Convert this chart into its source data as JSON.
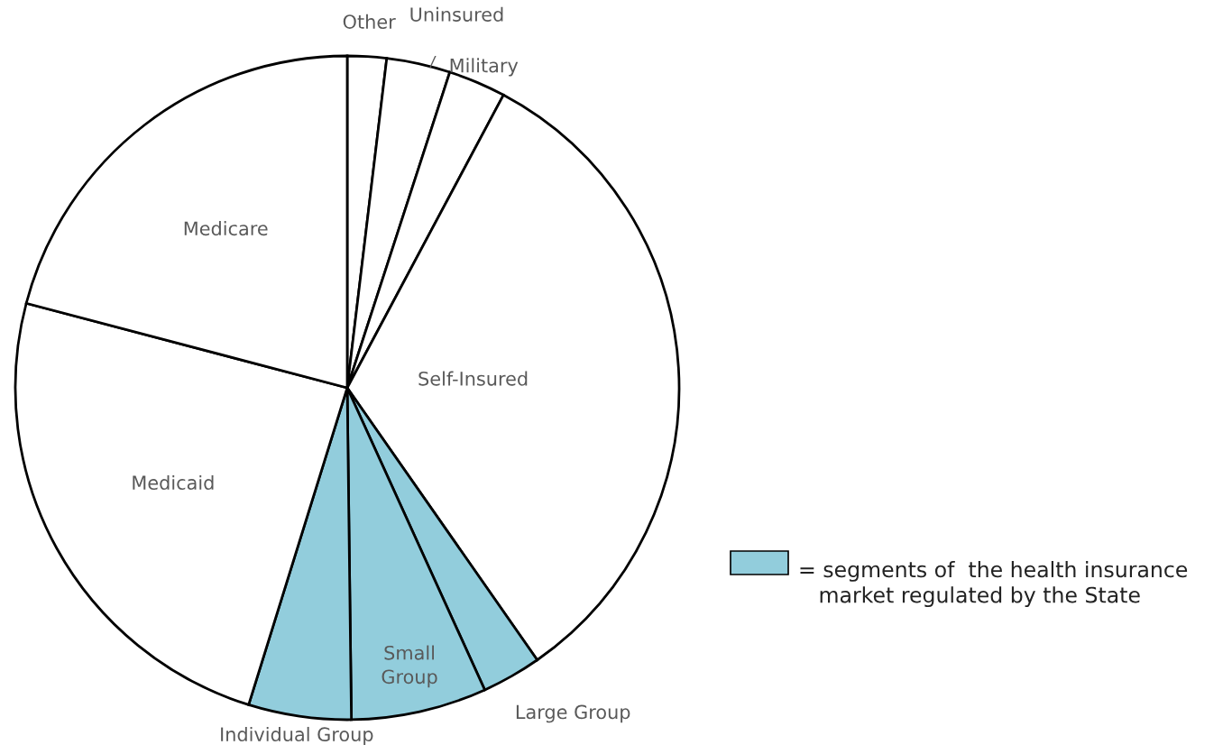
{
  "chart_data": {
    "type": "pie",
    "categories": [
      "Other",
      "Uninsured",
      "Military",
      "Self-Insured",
      "Large Group",
      "Small\nGroup",
      "Individual Group",
      "Medicaid",
      "Medicare"
    ],
    "values": [
      1.9,
      3.1,
      2.8,
      32.5,
      2.9,
      6.6,
      5.0,
      24.3,
      20.9
    ],
    "colors": [
      "#ffffff",
      "#ffffff",
      "#ffffff",
      "#ffffff",
      "#92cddc",
      "#92cddc",
      "#92cddc",
      "#ffffff",
      "#ffffff"
    ],
    "annotations": [
      "= segments of  the health insurance\n   market regulated by the State"
    ]
  }
}
